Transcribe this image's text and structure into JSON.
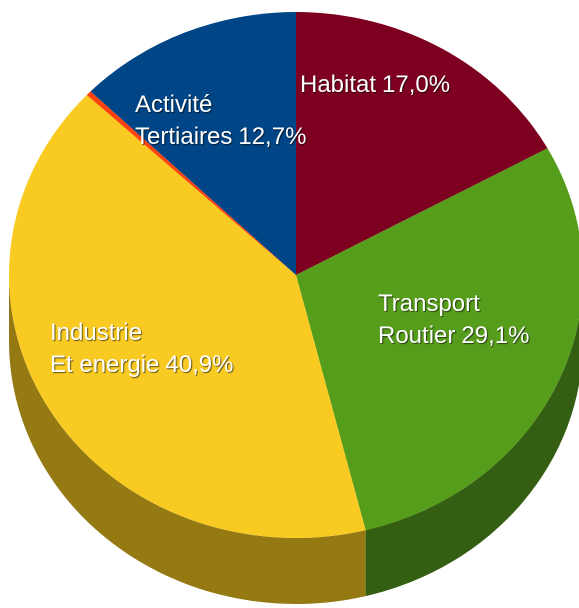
{
  "chart_data": {
    "type": "pie3d",
    "categories": [
      "Habitat",
      "Transport\nRoutier",
      "Industrie\nEt energie",
      null,
      "Activité\nTertiaires"
    ],
    "values": [
      17.0,
      29.1,
      40.9,
      0.3,
      12.7
    ],
    "value_labels": [
      "17,0%",
      "29,1%",
      "40,9%",
      null,
      "12,7%"
    ],
    "colors": [
      "#7e0021",
      "#579d1c",
      "#f9cb22",
      "#ff420e",
      "#004586"
    ]
  }
}
